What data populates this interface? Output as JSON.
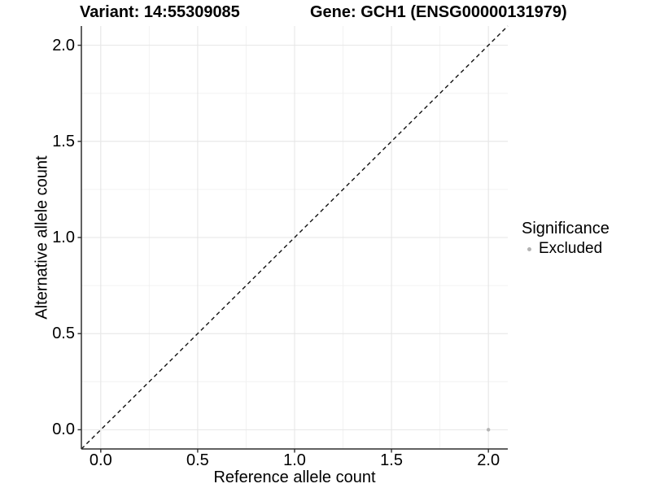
{
  "chart_data": {
    "type": "scatter",
    "title_left": "Variant: 14:55309085",
    "title_right": "Gene: GCH1 (ENSG00000131979)",
    "xlabel": "Reference allele count",
    "ylabel": "Alternative allele count",
    "xlim": [
      -0.1,
      2.1
    ],
    "ylim": [
      -0.1,
      2.1
    ],
    "x_ticks": [
      0.0,
      0.5,
      1.0,
      1.5,
      2.0
    ],
    "y_ticks": [
      0.0,
      0.5,
      1.0,
      1.5,
      2.0
    ],
    "x_minor_ticks": [
      0.25,
      0.75,
      1.25,
      1.75
    ],
    "y_minor_ticks": [
      0.25,
      0.75,
      1.25,
      1.75
    ],
    "grid": {
      "enabled": true,
      "major_color": "#e6e6e6",
      "minor_color": "#f2f2f2"
    },
    "axis_color": "#2e2e2e",
    "identity_line": {
      "slope": 1,
      "intercept": 0,
      "linetype": "dashed",
      "color": "#111111"
    },
    "series": [
      {
        "name": "Excluded",
        "color": "#b3b3b3",
        "point_radius": 2.2,
        "points": [
          {
            "x": 2.0,
            "y": 0.0
          }
        ]
      }
    ],
    "legend": {
      "title": "Significance",
      "position": "right",
      "entries": [
        {
          "label": "Excluded",
          "color": "#b3b3b3"
        }
      ]
    }
  }
}
